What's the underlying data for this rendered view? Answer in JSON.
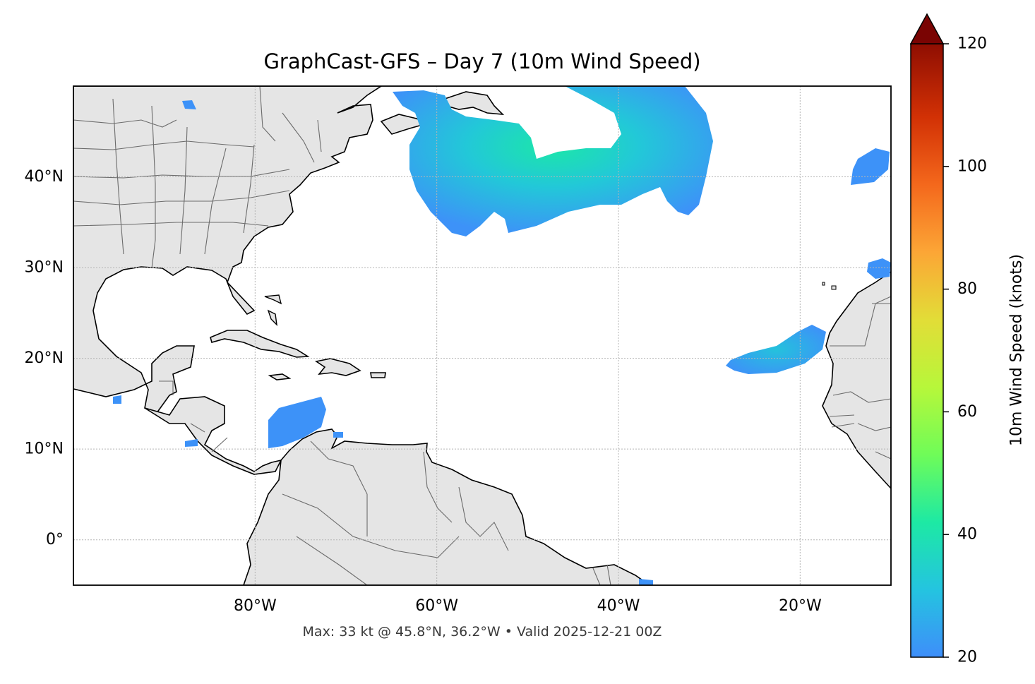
{
  "title": "GraphCast-GFS – Day 7 (10m Wind Speed)",
  "footer": "Max: 33 kt @ 45.8°N, 36.2°W • Valid 2025-12-21 00Z",
  "map": {
    "extent_lon": [
      -100,
      -10
    ],
    "extent_lat": [
      -5,
      50
    ],
    "lat_ticks": [
      {
        "value": 0,
        "label": "0°"
      },
      {
        "value": 10,
        "label": "10°N"
      },
      {
        "value": 20,
        "label": "20°N"
      },
      {
        "value": 30,
        "label": "30°N"
      },
      {
        "value": 40,
        "label": "40°N"
      }
    ],
    "lon_ticks": [
      {
        "value": -80,
        "label": "80°W"
      },
      {
        "value": -60,
        "label": "60°W"
      },
      {
        "value": -40,
        "label": "40°W"
      },
      {
        "value": -20,
        "label": "20°W"
      }
    ],
    "land_color": "#e5e5e5",
    "ocean_color": "#ffffff"
  },
  "colorbar": {
    "label": "10m Wind Speed (knots)",
    "min": 20,
    "max": 120,
    "extend": "max",
    "ticks": [
      {
        "value": 20,
        "label": "20"
      },
      {
        "value": 40,
        "label": "40"
      },
      {
        "value": 60,
        "label": "60"
      },
      {
        "value": 80,
        "label": "80"
      },
      {
        "value": 100,
        "label": "100"
      },
      {
        "value": 120,
        "label": "120"
      }
    ],
    "colormap": "turbo",
    "stops": [
      "#3e8efa",
      "#24c4e0",
      "#1de9a4",
      "#9bfb3f",
      "#e2dd37",
      "#fca636",
      "#f4681c",
      "#d23105",
      "#9d1401",
      "#7a0403"
    ]
  },
  "max_wind": {
    "speed_kt": 33,
    "lat": 45.8,
    "lon": -36.2
  }
}
